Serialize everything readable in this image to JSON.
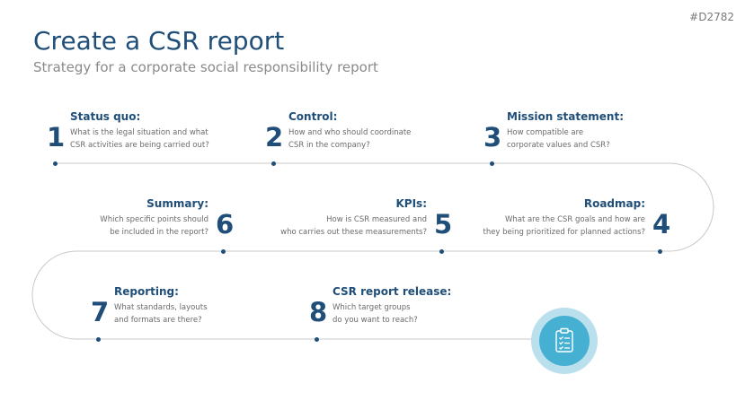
{
  "slide_code": "#D2782",
  "title": "Create a CSR report",
  "subtitle": "Strategy for a corporate social responsibility report",
  "steps": [
    {
      "number": "1",
      "title": "Status quo:",
      "line1": "What is the legal situation and what",
      "line2": "CSR activities are being carried out?"
    },
    {
      "number": "2",
      "title": "Control:",
      "line1": "How and who should coordinate",
      "line2": "CSR in the company?"
    },
    {
      "number": "3",
      "title": "Mission statement:",
      "line1": "How compatible are",
      "line2": "corporate values and CSR?"
    },
    {
      "number": "4",
      "title": "Roadmap:",
      "line1": "What are the CSR goals and how are",
      "line2": "they being prioritized for planned actions?"
    },
    {
      "number": "5",
      "title": "KPIs:",
      "line1": "How is CSR measured and",
      "line2": "who carries out these measurements?"
    },
    {
      "number": "6",
      "title": "Summary:",
      "line1": "Which specific points should",
      "line2": "be included in the report?"
    },
    {
      "number": "7",
      "title": "Reporting:",
      "line1": "What standards, layouts",
      "line2": "and formats are there?"
    },
    {
      "number": "8",
      "title": "CSR report release:",
      "line1": "Which target groups",
      "line2": "do you want to reach?"
    }
  ],
  "final_icon": "clipboard-checklist-icon",
  "colors": {
    "accent": "#1f4e79",
    "badge": "#45b0d1",
    "badge_ring": "#b9e0ec",
    "path": "#c8c8c8"
  }
}
